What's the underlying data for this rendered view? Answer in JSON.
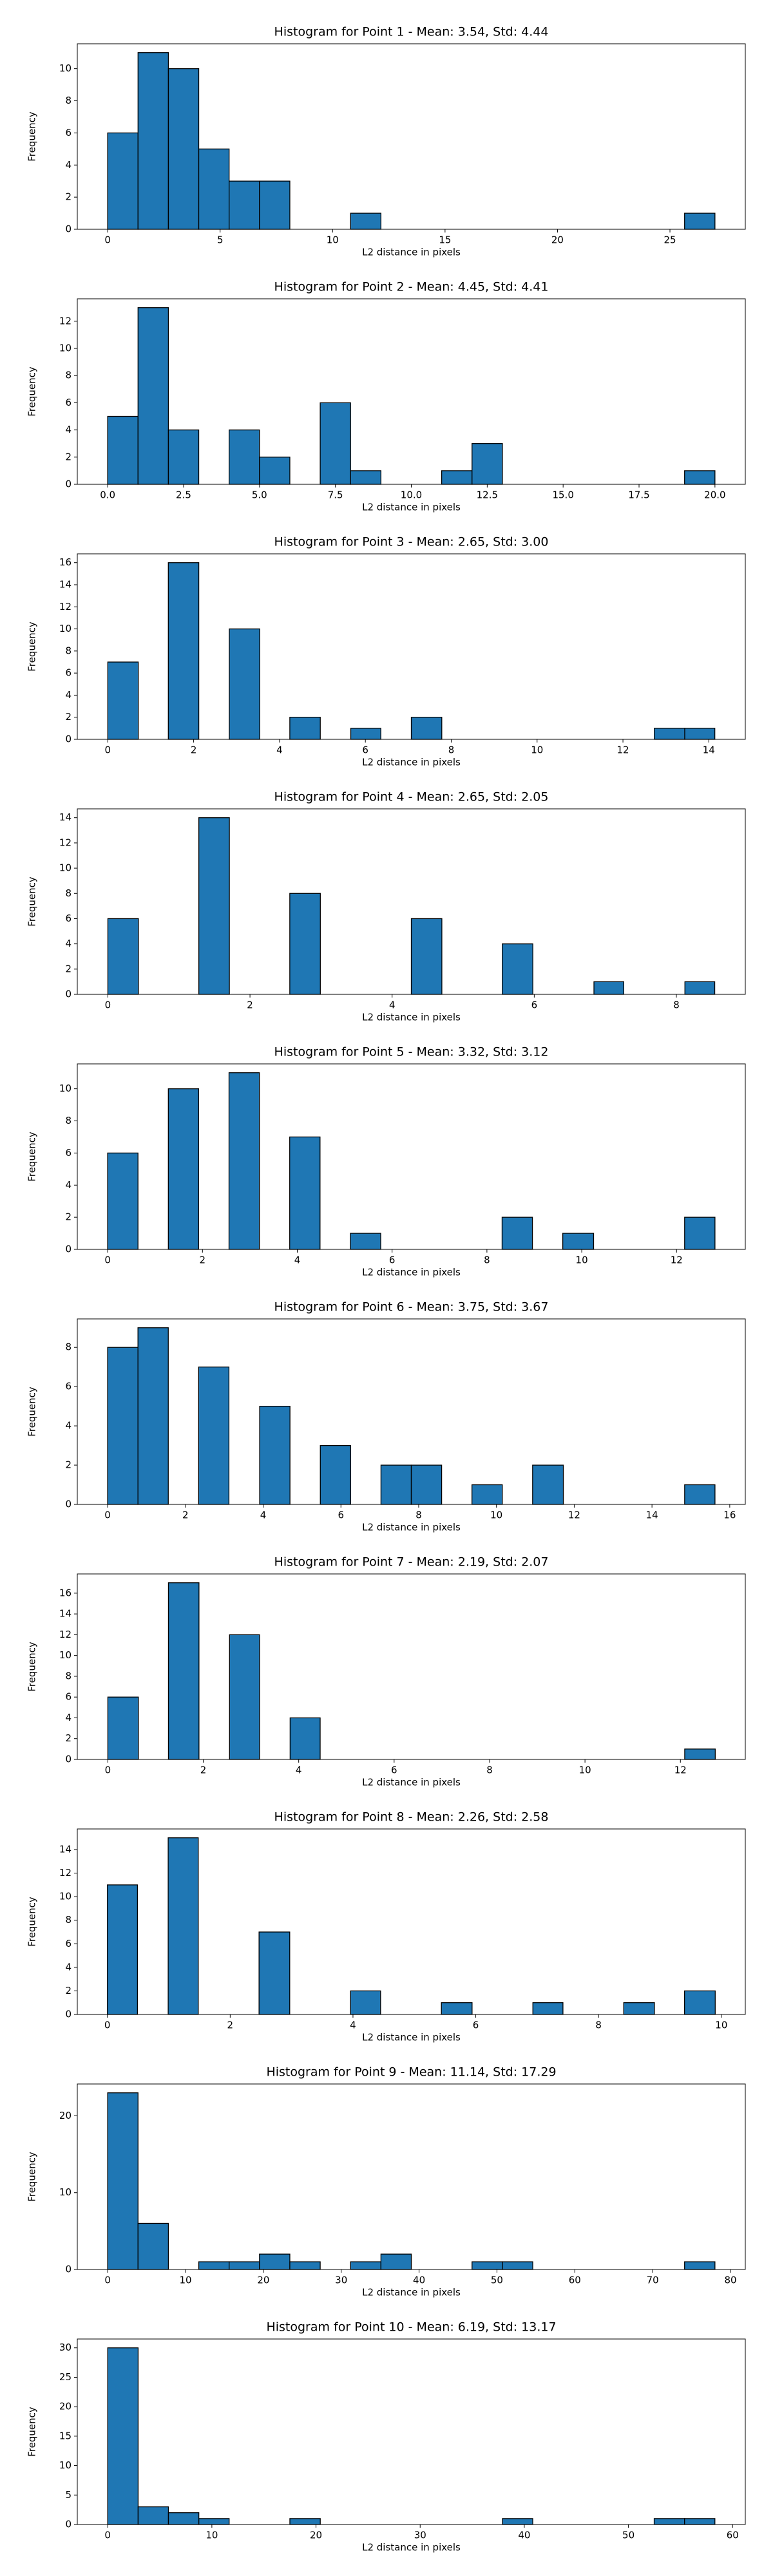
{
  "chart_data": [
    {
      "type": "histogram",
      "title": "Histogram for Point 1 - Mean: 3.54, Std: 4.44",
      "xlabel": "L2 distance in pixels",
      "ylabel": "Frequency",
      "color": "#1f77b4",
      "edgecolor": "#000000",
      "bins": [
        0,
        1.35,
        2.7,
        4.05,
        5.4,
        6.75,
        8.1,
        9.45,
        10.8,
        12.15,
        13.5,
        14.85,
        16.2,
        17.55,
        18.9,
        20.25,
        21.6,
        22.95,
        24.3,
        25.65,
        27
      ],
      "values": [
        6,
        11,
        10,
        5,
        3,
        3,
        0,
        0,
        1,
        0,
        0,
        0,
        0,
        0,
        0,
        0,
        0,
        0,
        0,
        1
      ],
      "xlim": [
        -1.35,
        28.35
      ],
      "xticks": [
        0,
        5,
        10,
        15,
        20,
        25
      ],
      "ylim": [
        0,
        11.55
      ],
      "yticks": [
        0,
        2,
        4,
        6,
        8,
        10
      ]
    },
    {
      "type": "histogram",
      "title": "Histogram for Point 2 - Mean: 4.45, Std: 4.41",
      "xlabel": "L2 distance in pixels",
      "ylabel": "Frequency",
      "color": "#1f77b4",
      "edgecolor": "#000000",
      "bins": [
        0,
        1,
        2,
        3,
        4,
        5,
        6,
        7,
        8,
        9,
        10,
        11,
        12,
        13,
        14,
        15,
        16,
        17,
        18,
        19,
        20
      ],
      "values": [
        5,
        13,
        4,
        0,
        4,
        2,
        0,
        6,
        1,
        0,
        0,
        1,
        3,
        0,
        0,
        0,
        0,
        0,
        0,
        1
      ],
      "xlim": [
        -1,
        21
      ],
      "xticks": [
        {
          "value": 0,
          "label": "0.0"
        },
        {
          "value": 2.5,
          "label": "2.5"
        },
        {
          "value": 5,
          "label": "5.0"
        },
        {
          "value": 7.5,
          "label": "7.5"
        },
        {
          "value": 10,
          "label": "10.0"
        },
        {
          "value": 12.5,
          "label": "12.5"
        },
        {
          "value": 15,
          "label": "15.0"
        },
        {
          "value": 17.5,
          "label": "17.5"
        },
        {
          "value": 20,
          "label": "20.0"
        }
      ],
      "ylim": [
        0,
        13.65
      ],
      "yticks": [
        0,
        2,
        4,
        6,
        8,
        10,
        12
      ]
    },
    {
      "type": "histogram",
      "title": "Histogram for Point 3 - Mean: 2.65, Std: 3.00",
      "xlabel": "L2 distance in pixels",
      "ylabel": "Frequency",
      "color": "#1f77b4",
      "edgecolor": "#000000",
      "bins": [
        0,
        0.71,
        1.41,
        2.12,
        2.83,
        3.54,
        4.24,
        4.95,
        5.66,
        6.36,
        7.07,
        7.78,
        8.49,
        9.19,
        9.9,
        10.61,
        11.31,
        12.02,
        12.73,
        13.44,
        14.14
      ],
      "values": [
        7,
        0,
        16,
        0,
        10,
        0,
        2,
        0,
        1,
        0,
        2,
        0,
        0,
        0,
        0,
        0,
        0,
        0,
        1,
        1
      ],
      "xlim": [
        -0.71,
        14.85
      ],
      "xticks": [
        0,
        2,
        4,
        6,
        8,
        10,
        12,
        14
      ],
      "ylim": [
        0,
        16.8
      ],
      "yticks": [
        0,
        2,
        4,
        6,
        8,
        10,
        12,
        14,
        16
      ]
    },
    {
      "type": "histogram",
      "title": "Histogram for Point 4 - Mean: 2.65, Std: 2.05",
      "xlabel": "L2 distance in pixels",
      "ylabel": "Frequency",
      "color": "#1f77b4",
      "edgecolor": "#000000",
      "bins": [
        0,
        0.43,
        0.85,
        1.28,
        1.71,
        2.14,
        2.56,
        2.99,
        3.42,
        3.84,
        4.27,
        4.7,
        5.13,
        5.55,
        5.98,
        6.41,
        6.84,
        7.26,
        7.69,
        8.12,
        8.54
      ],
      "values": [
        6,
        0,
        0,
        14,
        0,
        0,
        8,
        0,
        0,
        0,
        6,
        0,
        0,
        4,
        0,
        0,
        1,
        0,
        0,
        1
      ],
      "xlim": [
        -0.43,
        8.97
      ],
      "xticks": [
        0,
        2,
        4,
        6,
        8
      ],
      "ylim": [
        0,
        14.7
      ],
      "yticks": [
        0,
        2,
        4,
        6,
        8,
        10,
        12,
        14
      ]
    },
    {
      "type": "histogram",
      "title": "Histogram for Point 5 - Mean: 3.32, Std: 3.12",
      "xlabel": "L2 distance in pixels",
      "ylabel": "Frequency",
      "color": "#1f77b4",
      "edgecolor": "#000000",
      "bins": [
        0,
        0.64,
        1.28,
        1.92,
        2.56,
        3.2,
        3.84,
        4.48,
        5.12,
        5.76,
        6.4,
        7.04,
        7.68,
        8.32,
        8.96,
        9.6,
        10.25,
        10.89,
        11.53,
        12.17,
        12.81
      ],
      "values": [
        6,
        0,
        10,
        0,
        11,
        0,
        7,
        0,
        1,
        0,
        0,
        0,
        0,
        2,
        0,
        1,
        0,
        0,
        0,
        2
      ],
      "xlim": [
        -0.64,
        13.45
      ],
      "xticks": [
        0,
        2,
        4,
        6,
        8,
        10,
        12
      ],
      "ylim": [
        0,
        11.55
      ],
      "yticks": [
        0,
        2,
        4,
        6,
        8,
        10
      ]
    },
    {
      "type": "histogram",
      "title": "Histogram for Point 6 - Mean: 3.75, Std: 3.67",
      "xlabel": "L2 distance in pixels",
      "ylabel": "Frequency",
      "color": "#1f77b4",
      "edgecolor": "#000000",
      "bins": [
        0,
        0.78,
        1.56,
        2.34,
        3.12,
        3.91,
        4.69,
        5.47,
        6.25,
        7.03,
        7.81,
        8.59,
        9.37,
        10.15,
        10.93,
        11.72,
        12.5,
        13.28,
        14.06,
        14.84,
        15.62
      ],
      "values": [
        8,
        9,
        0,
        7,
        0,
        5,
        0,
        3,
        0,
        2,
        2,
        0,
        1,
        0,
        2,
        0,
        0,
        0,
        0,
        1
      ],
      "xlim": [
        -0.78,
        16.4
      ],
      "xticks": [
        0,
        2,
        4,
        6,
        8,
        10,
        12,
        14,
        16
      ],
      "ylim": [
        0,
        9.45
      ],
      "yticks": [
        0,
        2,
        4,
        6,
        8
      ]
    },
    {
      "type": "histogram",
      "title": "Histogram for Point 7 - Mean: 2.19, Std: 2.07",
      "xlabel": "L2 distance in pixels",
      "ylabel": "Frequency",
      "color": "#1f77b4",
      "edgecolor": "#000000",
      "bins": [
        0,
        0.64,
        1.27,
        1.91,
        2.55,
        3.18,
        3.82,
        4.45,
        5.09,
        5.73,
        6.36,
        7,
        7.64,
        8.27,
        8.91,
        9.55,
        10.18,
        10.82,
        11.46,
        12.09,
        12.73
      ],
      "values": [
        6,
        0,
        17,
        0,
        12,
        0,
        4,
        0,
        0,
        0,
        0,
        0,
        0,
        0,
        0,
        0,
        0,
        0,
        0,
        1
      ],
      "xlim": [
        -0.64,
        13.36
      ],
      "xticks": [
        0,
        2,
        4,
        6,
        8,
        10,
        12
      ],
      "ylim": [
        0,
        17.85
      ],
      "yticks": [
        0,
        2,
        4,
        6,
        8,
        10,
        12,
        14,
        16
      ]
    },
    {
      "type": "histogram",
      "title": "Histogram for Point 8 - Mean: 2.26, Std: 2.58",
      "xlabel": "L2 distance in pixels",
      "ylabel": "Frequency",
      "color": "#1f77b4",
      "edgecolor": "#000000",
      "bins": [
        0,
        0.49,
        0.99,
        1.48,
        1.98,
        2.47,
        2.97,
        3.46,
        3.96,
        4.45,
        4.95,
        5.44,
        5.94,
        6.43,
        6.93,
        7.42,
        7.92,
        8.41,
        8.91,
        9.4,
        9.9
      ],
      "values": [
        11,
        0,
        15,
        0,
        0,
        7,
        0,
        0,
        2,
        0,
        0,
        1,
        0,
        0,
        1,
        0,
        0,
        1,
        0,
        2
      ],
      "xlim": [
        -0.49,
        10.39
      ],
      "xticks": [
        0,
        2,
        4,
        6,
        8,
        10
      ],
      "ylim": [
        0,
        15.75
      ],
      "yticks": [
        0,
        2,
        4,
        6,
        8,
        10,
        12,
        14
      ]
    },
    {
      "type": "histogram",
      "title": "Histogram for Point 9 - Mean: 11.14, Std: 17.29",
      "xlabel": "L2 distance in pixels",
      "ylabel": "Frequency",
      "color": "#1f77b4",
      "edgecolor": "#000000",
      "bins": [
        0,
        3.9,
        7.8,
        11.7,
        15.6,
        19.5,
        23.4,
        27.3,
        31.2,
        35.1,
        39,
        42.9,
        46.8,
        50.7,
        54.6,
        58.5,
        62.4,
        66.3,
        70.2,
        74.1,
        78
      ],
      "values": [
        23,
        6,
        0,
        1,
        1,
        2,
        1,
        0,
        1,
        2,
        0,
        0,
        1,
        1,
        0,
        0,
        0,
        0,
        0,
        1
      ],
      "xlim": [
        -3.9,
        81.9
      ],
      "xticks": [
        0,
        10,
        20,
        30,
        40,
        50,
        60,
        70,
        80
      ],
      "ylim": [
        0,
        24.15
      ],
      "yticks": [
        0,
        10,
        20
      ]
    },
    {
      "type": "histogram",
      "title": "Histogram for Point 10 - Mean: 6.19, Std: 13.17",
      "xlabel": "L2 distance in pixels",
      "ylabel": "Frequency",
      "color": "#1f77b4",
      "edgecolor": "#000000",
      "bins": [
        0,
        2.92,
        5.83,
        8.75,
        11.66,
        14.58,
        17.49,
        20.41,
        23.32,
        26.24,
        29.15,
        32.07,
        34.98,
        37.9,
        40.81,
        43.73,
        46.64,
        49.56,
        52.47,
        55.39,
        58.3
      ],
      "values": [
        30,
        3,
        2,
        1,
        0,
        0,
        1,
        0,
        0,
        0,
        0,
        0,
        0,
        1,
        0,
        0,
        0,
        0,
        1,
        1
      ],
      "xlim": [
        -2.92,
        61.22
      ],
      "xticks": [
        0,
        10,
        20,
        30,
        40,
        50,
        60
      ],
      "ylim": [
        0,
        31.5
      ],
      "yticks": [
        0,
        5,
        10,
        15,
        20,
        25,
        30
      ]
    }
  ]
}
